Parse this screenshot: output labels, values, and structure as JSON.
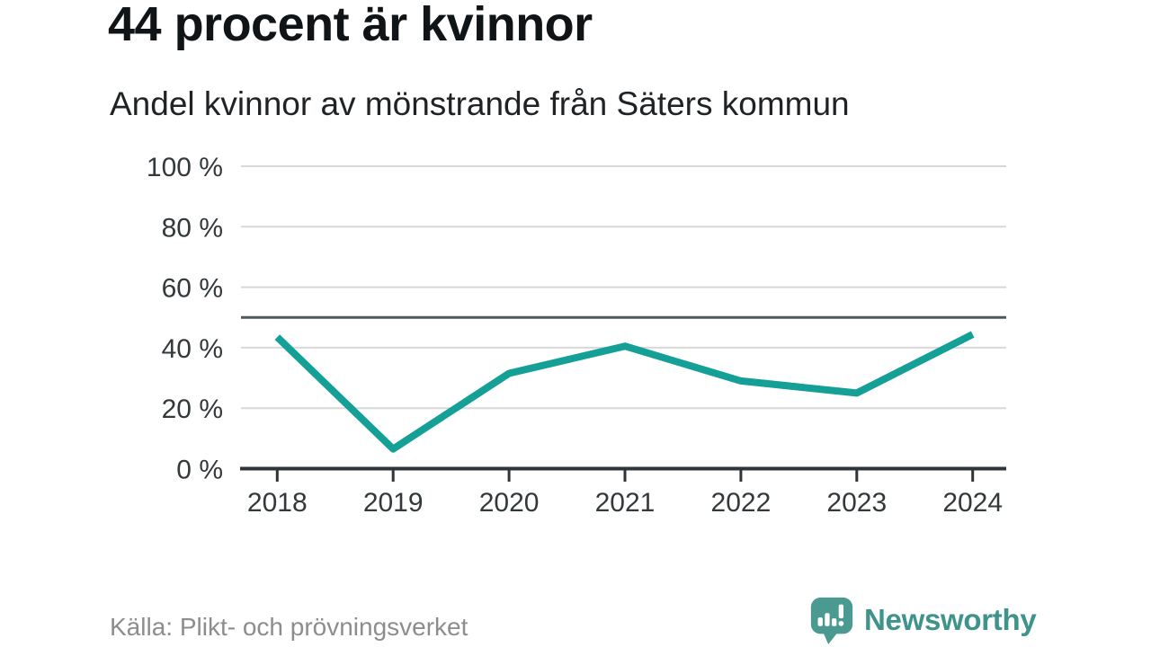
{
  "header": {
    "title": "44 procent är kvinnor",
    "subtitle": "Andel kvinnor av mönstrande från Säters kommun"
  },
  "chart_data": {
    "type": "line",
    "x": [
      "2018",
      "2019",
      "2020",
      "2021",
      "2022",
      "2023",
      "2024"
    ],
    "values": [
      43.5,
      6.5,
      31.5,
      40.5,
      29,
      25,
      44.4
    ],
    "title": "44 procent är kvinnor",
    "subtitle": "Andel kvinnor av mönstrande från Säters kommun",
    "xlabel": "",
    "ylabel": "",
    "ylim": [
      0,
      100
    ],
    "yticks": [
      0,
      20,
      40,
      60,
      80,
      100
    ],
    "ytick_suffix": " %",
    "reference_line_y": 50,
    "grid": "horizontal",
    "legend": "none"
  },
  "footer": {
    "source": "Källa: Plikt- och prövningsverket",
    "brand_name": "Newsworthy"
  },
  "colors": {
    "line": "#14a096",
    "grid": "#d8d8d8",
    "reference": "#50585c",
    "axis": "#2e3538",
    "tickLabel": "#33393b",
    "title": "#111417",
    "subtitle": "#202325",
    "source": "#8d8d8d",
    "brand": "#3e938b",
    "brandIcon": "#4a9a92"
  }
}
